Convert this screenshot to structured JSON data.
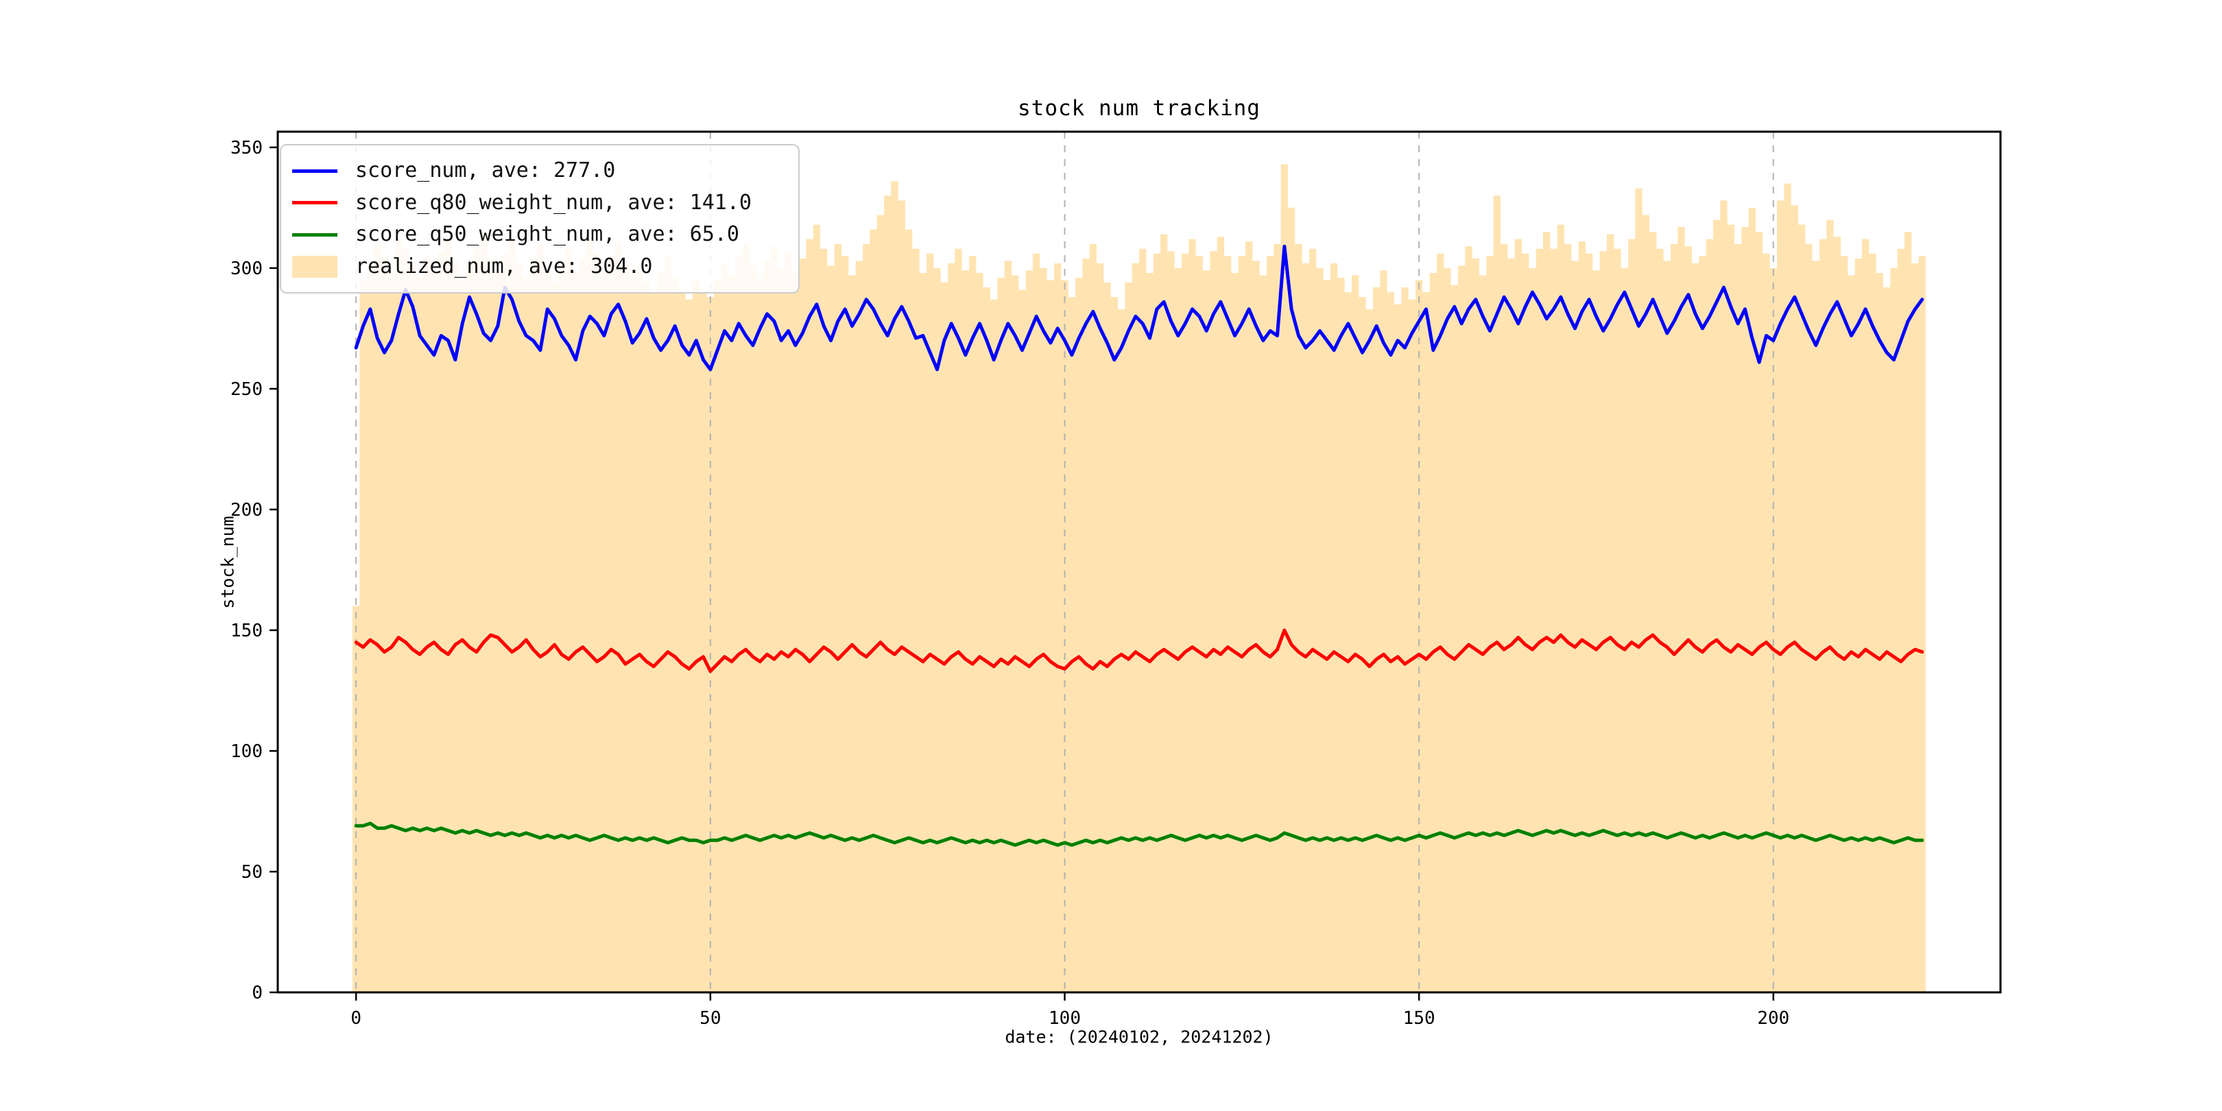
{
  "figure": {
    "background": "#ffffff"
  },
  "chart_data": {
    "type": "line+bar",
    "title": "stock num tracking",
    "xlabel": "date: (20240102, 20241202)",
    "ylabel": "stock_num",
    "x_is_index": true,
    "n_points": 222,
    "xlim": [
      -11,
      232
    ],
    "ylim": [
      0,
      356
    ],
    "xticks": [
      0,
      50,
      100,
      150,
      200
    ],
    "yticks": [
      0,
      50,
      100,
      150,
      200,
      250,
      300,
      350
    ],
    "grid": {
      "vertical_dashed": true,
      "horizontal": false,
      "color": "#b0b0b0"
    },
    "legend_position": "upper-left",
    "axis_color": "#000000",
    "series": [
      {
        "name": "score_num",
        "legend_label": "score_num, ave: 277.0",
        "type": "line",
        "color": "#0000ff",
        "ave": 277.0,
        "values": [
          267,
          276,
          283,
          271,
          265,
          270,
          281,
          291,
          284,
          272,
          268,
          264,
          272,
          270,
          262,
          277,
          288,
          281,
          273,
          270,
          276,
          292,
          287,
          278,
          272,
          270,
          266,
          283,
          279,
          272,
          268,
          262,
          274,
          280,
          277,
          272,
          281,
          285,
          278,
          269,
          273,
          279,
          271,
          266,
          270,
          276,
          268,
          264,
          270,
          262,
          258,
          266,
          274,
          270,
          277,
          272,
          268,
          275,
          281,
          278,
          270,
          274,
          268,
          273,
          280,
          285,
          276,
          270,
          278,
          283,
          276,
          281,
          287,
          283,
          277,
          272,
          279,
          284,
          278,
          271,
          272,
          265,
          258,
          270,
          277,
          271,
          264,
          271,
          277,
          270,
          262,
          270,
          277,
          272,
          266,
          273,
          280,
          274,
          269,
          275,
          270,
          264,
          271,
          277,
          282,
          275,
          269,
          262,
          267,
          274,
          280,
          277,
          271,
          283,
          286,
          278,
          272,
          277,
          283,
          280,
          274,
          281,
          286,
          279,
          272,
          277,
          283,
          276,
          270,
          274,
          272,
          309,
          283,
          272,
          267,
          270,
          274,
          270,
          266,
          272,
          277,
          271,
          265,
          270,
          276,
          269,
          264,
          270,
          267,
          273,
          278,
          283,
          266,
          272,
          279,
          284,
          277,
          283,
          287,
          280,
          274,
          281,
          288,
          283,
          277,
          284,
          290,
          285,
          279,
          283,
          288,
          281,
          275,
          282,
          287,
          280,
          274,
          279,
          285,
          290,
          283,
          276,
          281,
          287,
          280,
          273,
          278,
          284,
          289,
          281,
          275,
          280,
          286,
          292,
          284,
          277,
          283,
          271,
          261,
          272,
          270,
          277,
          283,
          288,
          281,
          274,
          268,
          275,
          281,
          286,
          279,
          272,
          277,
          283,
          276,
          270,
          265,
          262,
          270,
          278,
          283,
          287
        ]
      },
      {
        "name": "score_q80_weight_num",
        "legend_label": "score_q80_weight_num, ave: 141.0",
        "type": "line",
        "color": "#ff0000",
        "ave": 141.0,
        "values": [
          145,
          143,
          146,
          144,
          141,
          143,
          147,
          145,
          142,
          140,
          143,
          145,
          142,
          140,
          144,
          146,
          143,
          141,
          145,
          148,
          147,
          144,
          141,
          143,
          146,
          142,
          139,
          141,
          144,
          140,
          138,
          141,
          143,
          140,
          137,
          139,
          142,
          140,
          136,
          138,
          140,
          137,
          135,
          138,
          141,
          139,
          136,
          134,
          137,
          139,
          133,
          136,
          139,
          137,
          140,
          142,
          139,
          137,
          140,
          138,
          141,
          139,
          142,
          140,
          137,
          140,
          143,
          141,
          138,
          141,
          144,
          141,
          139,
          142,
          145,
          142,
          140,
          143,
          141,
          139,
          137,
          140,
          138,
          136,
          139,
          141,
          138,
          136,
          139,
          137,
          135,
          138,
          136,
          139,
          137,
          135,
          138,
          140,
          137,
          135,
          134,
          137,
          139,
          136,
          134,
          137,
          135,
          138,
          140,
          138,
          141,
          139,
          137,
          140,
          142,
          140,
          138,
          141,
          143,
          141,
          139,
          142,
          140,
          143,
          141,
          139,
          142,
          144,
          141,
          139,
          142,
          150,
          144,
          141,
          139,
          142,
          140,
          138,
          141,
          139,
          137,
          140,
          138,
          135,
          138,
          140,
          137,
          139,
          136,
          138,
          140,
          138,
          141,
          143,
          140,
          138,
          141,
          144,
          142,
          140,
          143,
          145,
          142,
          144,
          147,
          144,
          142,
          145,
          147,
          145,
          148,
          145,
          143,
          146,
          144,
          142,
          145,
          147,
          144,
          142,
          145,
          143,
          146,
          148,
          145,
          143,
          140,
          143,
          146,
          143,
          141,
          144,
          146,
          143,
          141,
          144,
          142,
          140,
          143,
          145,
          142,
          140,
          143,
          145,
          142,
          140,
          138,
          141,
          143,
          140,
          138,
          141,
          139,
          142,
          140,
          138,
          141,
          139,
          137,
          140,
          142,
          141
        ]
      },
      {
        "name": "score_q50_weight_num",
        "legend_label": "score_q50_weight_num, ave: 65.0",
        "type": "line",
        "color": "#008000",
        "ave": 65.0,
        "values": [
          69,
          69,
          70,
          68,
          68,
          69,
          68,
          67,
          68,
          67,
          68,
          67,
          68,
          67,
          66,
          67,
          66,
          67,
          66,
          65,
          66,
          65,
          66,
          65,
          66,
          65,
          64,
          65,
          64,
          65,
          64,
          65,
          64,
          63,
          64,
          65,
          64,
          63,
          64,
          63,
          64,
          63,
          64,
          63,
          62,
          63,
          64,
          63,
          63,
          62,
          63,
          63,
          64,
          63,
          64,
          65,
          64,
          63,
          64,
          65,
          64,
          65,
          64,
          65,
          66,
          65,
          64,
          65,
          64,
          63,
          64,
          63,
          64,
          65,
          64,
          63,
          62,
          63,
          64,
          63,
          62,
          63,
          62,
          63,
          64,
          63,
          62,
          63,
          62,
          63,
          62,
          63,
          62,
          61,
          62,
          63,
          62,
          63,
          62,
          61,
          62,
          61,
          62,
          63,
          62,
          63,
          62,
          63,
          64,
          63,
          64,
          63,
          64,
          63,
          64,
          65,
          64,
          63,
          64,
          65,
          64,
          65,
          64,
          65,
          64,
          63,
          64,
          65,
          64,
          63,
          64,
          66,
          65,
          64,
          63,
          64,
          63,
          64,
          63,
          64,
          63,
          64,
          63,
          64,
          65,
          64,
          63,
          64,
          63,
          64,
          65,
          64,
          65,
          66,
          65,
          64,
          65,
          66,
          65,
          66,
          65,
          66,
          65,
          66,
          67,
          66,
          65,
          66,
          67,
          66,
          67,
          66,
          65,
          66,
          65,
          66,
          67,
          66,
          65,
          66,
          65,
          66,
          65,
          66,
          65,
          64,
          65,
          66,
          65,
          64,
          65,
          64,
          65,
          66,
          65,
          64,
          65,
          64,
          65,
          66,
          65,
          64,
          65,
          64,
          65,
          64,
          63,
          64,
          65,
          64,
          63,
          64,
          63,
          64,
          63,
          64,
          63,
          62,
          63,
          64,
          63,
          63
        ]
      },
      {
        "name": "realized_num",
        "legend_label": "realized_num, ave: 304.0",
        "type": "bar",
        "color": "#ffe4b2",
        "ave": 304.0,
        "values": [
          160,
          295,
          300,
          310,
          305,
          298,
          312,
          308,
          302,
          296,
          305,
          299,
          307,
          313,
          303,
          295,
          301,
          309,
          315,
          304,
          298,
          306,
          311,
          302,
          296,
          304,
          310,
          300,
          294,
          302,
          308,
          298,
          304,
          312,
          306,
          299,
          305,
          311,
          303,
          297,
          300,
          294,
          290,
          298,
          305,
          296,
          290,
          287,
          295,
          290,
          288,
          295,
          302,
          297,
          305,
          310,
          301,
          296,
          303,
          309,
          300,
          307,
          298,
          304,
          312,
          318,
          308,
          301,
          310,
          305,
          297,
          303,
          310,
          316,
          322,
          330,
          336,
          328,
          316,
          308,
          298,
          306,
          300,
          294,
          302,
          308,
          299,
          305,
          298,
          292,
          287,
          296,
          303,
          297,
          291,
          299,
          306,
          300,
          295,
          302,
          295,
          288,
          296,
          304,
          310,
          302,
          294,
          288,
          283,
          294,
          302,
          308,
          298,
          306,
          314,
          307,
          300,
          306,
          312,
          305,
          299,
          307,
          313,
          305,
          298,
          305,
          311,
          303,
          297,
          305,
          310,
          343,
          325,
          310,
          302,
          308,
          300,
          295,
          302,
          296,
          290,
          297,
          288,
          283,
          292,
          299,
          290,
          285,
          292,
          287,
          295,
          290,
          298,
          306,
          300,
          293,
          301,
          309,
          304,
          297,
          305,
          330,
          310,
          304,
          312,
          306,
          300,
          308,
          315,
          308,
          318,
          310,
          303,
          311,
          306,
          299,
          307,
          314,
          308,
          300,
          312,
          333,
          322,
          315,
          308,
          303,
          310,
          317,
          309,
          302,
          305,
          312,
          320,
          328,
          318,
          310,
          317,
          325,
          315,
          306,
          300,
          328,
          335,
          326,
          318,
          310,
          303,
          312,
          320,
          313,
          305,
          297,
          304,
          312,
          306,
          298,
          292,
          300,
          308,
          315,
          302,
          305
        ]
      }
    ]
  }
}
